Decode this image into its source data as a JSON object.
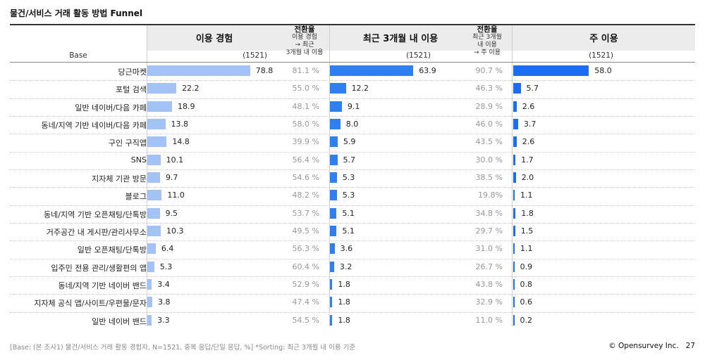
{
  "title": "물건/서비스 거래 활동 방법 Funnel",
  "header": {
    "base_label": "Base",
    "groups": [
      {
        "label": "이용 경험",
        "n": "(1521)"
      },
      {
        "label": "최근 3개월 내 이용",
        "n": "(1521)"
      },
      {
        "label": "주 이용",
        "n": "(1521)"
      }
    ],
    "conv1": {
      "title": "전환율",
      "lines": [
        "이용 경험",
        "→ 최근",
        "3개월 내 이용"
      ]
    },
    "conv2": {
      "title": "전환율",
      "lines": [
        "최근 3개월",
        "내 이용",
        "→ 주 이용"
      ]
    }
  },
  "colors": {
    "bar_light": "#a3c3f7",
    "bar_mid": "#2e7ff0",
    "bar_dark": "#1b6ef3",
    "header_bg": "#ececec"
  },
  "chart_data": {
    "type": "bar",
    "categories": [
      "당근마켓",
      "포털 검색",
      "일반 네이버/다음 카페",
      "동네/지역 기반 네이버/다음 카페",
      "구인 구직앱",
      "SNS",
      "지자체 기관 방문",
      "블로그",
      "동네/지역 기반 오픈채팅/단톡방",
      "거주공간 내 게시판/관리사무소",
      "일반 오픈채팅/단톡방",
      "입주민 전용 관리/생활편의 앱",
      "동네/지역 기반 네이버 밴드",
      "지자체 공식 앱/사이트/우편물/문자",
      "일반 네이버 밴드"
    ],
    "series": [
      {
        "name": "이용 경험",
        "values": [
          78.8,
          22.2,
          18.9,
          13.8,
          14.8,
          10.1,
          9.7,
          11.0,
          9.5,
          10.3,
          6.4,
          5.3,
          3.4,
          3.8,
          3.3
        ]
      },
      {
        "name": "최근 3개월 내 이용",
        "values": [
          63.9,
          12.2,
          9.1,
          8.0,
          5.9,
          5.7,
          5.3,
          5.3,
          5.1,
          5.1,
          3.6,
          3.2,
          1.8,
          1.8,
          1.8
        ]
      },
      {
        "name": "주 이용",
        "values": [
          58.0,
          5.7,
          2.6,
          3.7,
          2.6,
          1.7,
          2.0,
          1.1,
          1.8,
          1.5,
          1.1,
          0.9,
          0.8,
          0.6,
          0.2
        ]
      }
    ],
    "conversion_1": [
      "81.1 %",
      "55.0 %",
      "48.1 %",
      "58.0 %",
      "39.9 %",
      "56.4 %",
      "54.6 %",
      "48.2 %",
      "53.7 %",
      "49.5 %",
      "56.3 %",
      "60.4 %",
      "52.9 %",
      "47.4 %",
      "54.5 %"
    ],
    "conversion_2": [
      "90.7 %",
      "46.3 %",
      "28.9 %",
      "46.0 %",
      "43.5 %",
      "30.0 %",
      "38.5 %",
      "19.8%",
      "34.8 %",
      "29.7 %",
      "31.0 %",
      "26.7 %",
      "43.8 %",
      "32.9 %",
      "11.0 %"
    ]
  },
  "footnote": "[Base: (본 조사1) 물건/서비스 거래 활동 경험자, N=1521, 중복 응답/단일 응답, %] *Sorting: 최근 3개월 내 이용 기준",
  "footer": {
    "brand": "© Opensurvey Inc.",
    "page": "27"
  }
}
